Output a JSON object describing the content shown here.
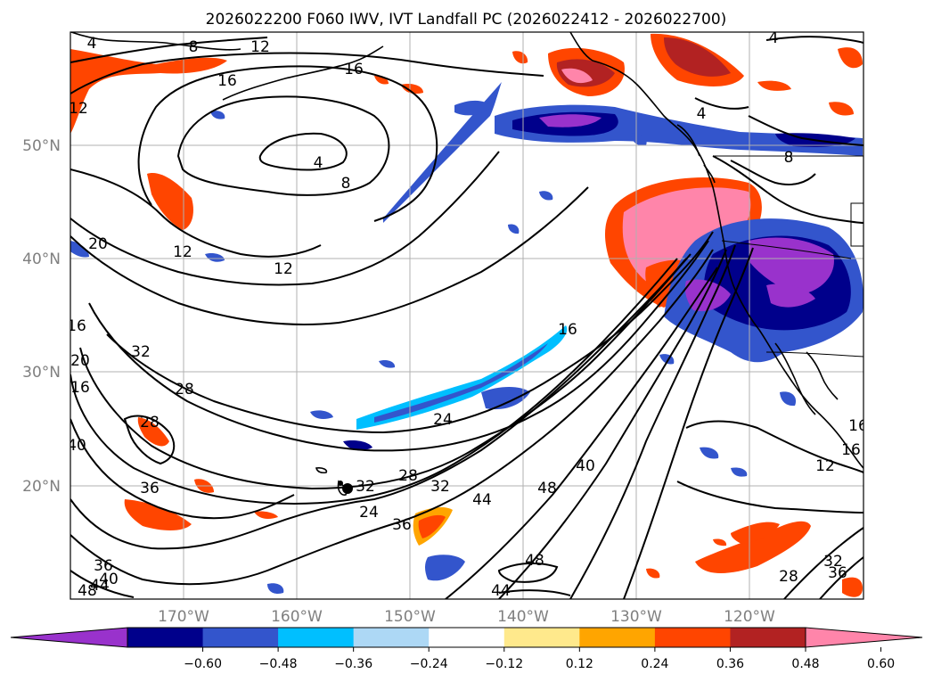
{
  "title": "2026022200 F060 IWV, IVT Landfall PC (2026022412 - 2026022700)",
  "lat_labels": [
    "50°N",
    "40°N",
    "30°N",
    "20°N"
  ],
  "lon_labels": [
    "170°W",
    "160°W",
    "150°W",
    "140°W",
    "130°W",
    "120°W"
  ],
  "colorbar": {
    "colors": [
      "#9932cc",
      "#00008b",
      "#3355cc",
      "#00bfff",
      "#add8f5",
      "#ffffff",
      "#ffe98c",
      "#ffa500",
      "#ff4500",
      "#b22222",
      "#ff85aa"
    ],
    "ticks": [
      "−0.60",
      "−0.48",
      "−0.36",
      "−0.24",
      "−0.12",
      "0.12",
      "0.24",
      "0.36",
      "0.48",
      "0.60"
    ]
  },
  "contour_labels": [
    "4",
    "8",
    "12",
    "12",
    "16",
    "16",
    "4",
    "8",
    "20",
    "12",
    "12",
    "16",
    "16",
    "20",
    "32",
    "28",
    "28",
    "40",
    "36",
    "36",
    "40",
    "48",
    "44",
    "32",
    "28",
    "24",
    "24",
    "32",
    "36",
    "44",
    "48",
    "40",
    "48",
    "44",
    "16",
    "12",
    "16",
    "28",
    "32",
    "36",
    "8",
    "4",
    "4",
    "16"
  ]
}
